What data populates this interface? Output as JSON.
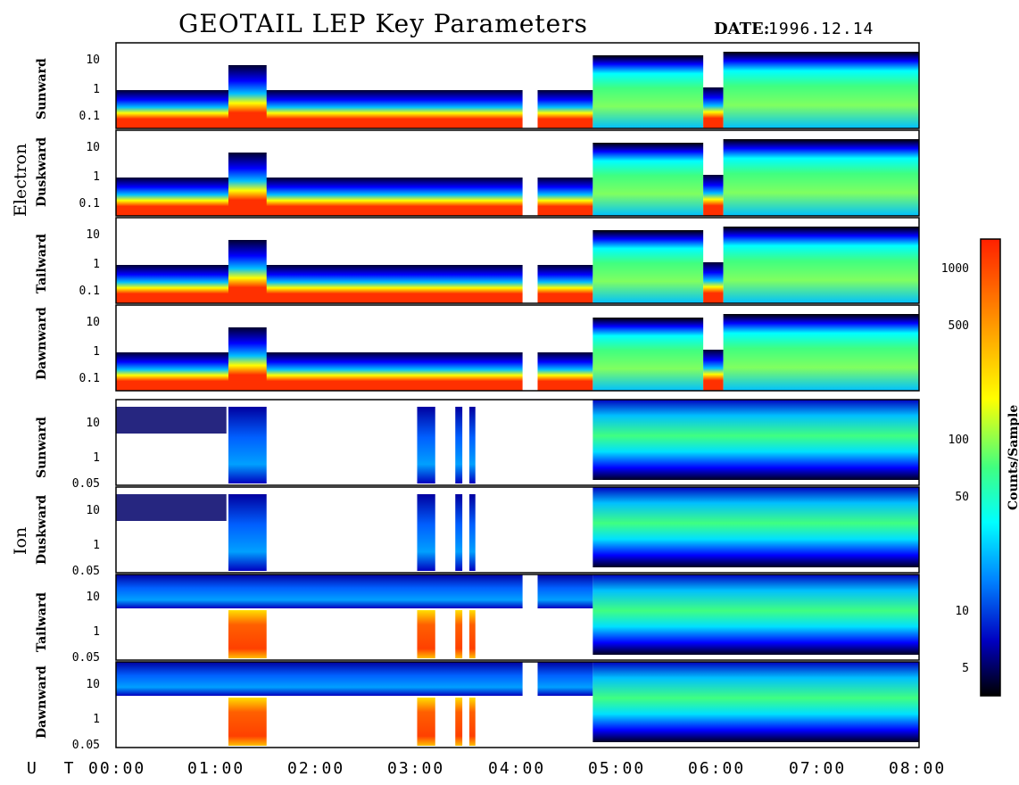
{
  "title": "GEOTAIL LEP Key Parameters",
  "date_label": "DATE:",
  "date_value": "1996.12.14",
  "colors": {
    "scale": [
      "#000000",
      "#00007f",
      "#0000ff",
      "#0080ff",
      "#00ffff",
      "#40ff80",
      "#ffff00",
      "#ff8000",
      "#ff3000"
    ]
  },
  "chart_data": {
    "type": "heatmap",
    "x_axis_label": "U T",
    "x_ticks": [
      "00:00",
      "01:00",
      "02:00",
      "03:00",
      "04:00",
      "05:00",
      "06:00",
      "07:00",
      "08:00"
    ],
    "xlim_hours": [
      0,
      8
    ],
    "data_gaps_hours": [
      [
        4.05,
        4.2
      ]
    ],
    "groups": [
      {
        "name": "Electron",
        "panels": [
          {
            "name": "Sunward",
            "y_ticks": [
              "10",
              "1",
              "0.1"
            ]
          },
          {
            "name": "Duskward",
            "y_ticks": [
              "10",
              "1",
              "0.1"
            ]
          },
          {
            "name": "Tailward",
            "y_ticks": [
              "10",
              "1",
              "0.1"
            ]
          },
          {
            "name": "Dawnward",
            "y_ticks": [
              "10",
              "1",
              "0.1"
            ]
          }
        ]
      },
      {
        "name": "Ion",
        "panels": [
          {
            "name": "Sunward",
            "y_ticks": [
              "10",
              "1",
              "0.05"
            ]
          },
          {
            "name": "Duskward",
            "y_ticks": [
              "10",
              "1",
              "0.05"
            ]
          },
          {
            "name": "Tailward",
            "y_ticks": [
              "10",
              "1",
              "0.05"
            ]
          },
          {
            "name": "Dawnward",
            "y_ticks": [
              "10",
              "1",
              "0.05"
            ]
          }
        ]
      }
    ],
    "colorbar": {
      "label": "Counts/Sample",
      "ticks": [
        "1000",
        "500",
        "100",
        "50",
        "10",
        "5"
      ],
      "tick_values": [
        1000,
        500,
        100,
        50,
        10,
        5
      ],
      "range": [
        3,
        1600
      ],
      "scale": "log"
    }
  }
}
